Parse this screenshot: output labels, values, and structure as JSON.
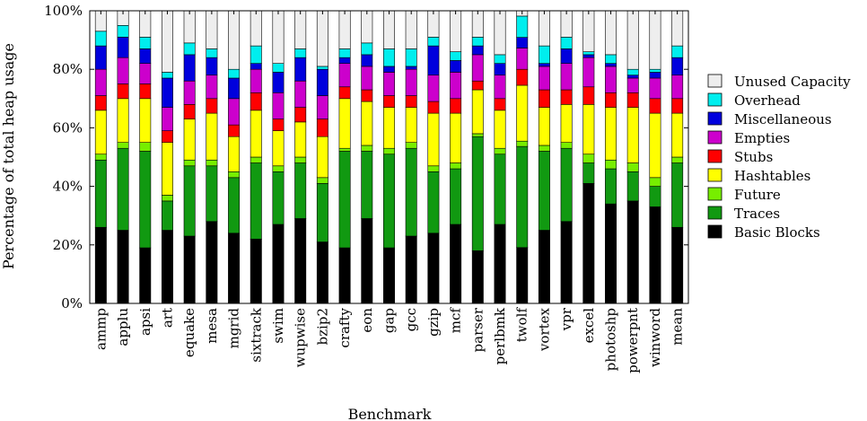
{
  "chart_data": {
    "type": "bar",
    "stacked": true,
    "normalized": true,
    "xlabel": "Benchmark",
    "ylabel": "Percentage of total heap usage",
    "ylim": [
      0,
      100
    ],
    "yticks": [
      "0%",
      "20%",
      "40%",
      "60%",
      "80%",
      "100%"
    ],
    "legend_position": "right",
    "grid": false,
    "categories": [
      "ammp",
      "applu",
      "apsi",
      "art",
      "equake",
      "mesa",
      "mgrid",
      "sixtrack",
      "swim",
      "wupwise",
      "bzip2",
      "crafty",
      "eon",
      "gap",
      "gcc",
      "gzip",
      "mcf",
      "parser",
      "perlbmk",
      "twolf",
      "vortex",
      "vpr",
      "excel",
      "photoshp",
      "powerpnt",
      "winword",
      "mean"
    ],
    "series": [
      {
        "name": "Basic Blocks",
        "color": "#000000",
        "values": [
          26,
          25,
          19,
          25,
          23,
          28,
          24,
          22,
          27,
          29,
          21,
          19,
          29,
          19,
          23,
          24,
          27,
          18,
          27,
          21,
          25,
          28,
          41,
          34,
          35,
          33,
          26
        ]
      },
      {
        "name": "Traces",
        "color": "#119911",
        "values": [
          23,
          28,
          33,
          10,
          24,
          19,
          19,
          26,
          18,
          19,
          20,
          33,
          23,
          32,
          30,
          21,
          19,
          39,
          24,
          38,
          27,
          25,
          7,
          12,
          10,
          7,
          22
        ]
      },
      {
        "name": "Future",
        "color": "#77ee00",
        "values": [
          2,
          2,
          3,
          2,
          2,
          2,
          2,
          2,
          2,
          2,
          2,
          1,
          2,
          2,
          2,
          2,
          2,
          1,
          2,
          2,
          2,
          2,
          3,
          3,
          3,
          3,
          2
        ]
      },
      {
        "name": "Hashtables",
        "color": "#ffff00",
        "values": [
          15,
          15,
          15,
          18,
          14,
          16,
          12,
          16,
          12,
          12,
          14,
          17,
          15,
          14,
          12,
          18,
          17,
          15,
          13,
          21,
          13,
          13,
          17,
          18,
          19,
          22,
          15
        ]
      },
      {
        "name": "Stubs",
        "color": "#ff0000",
        "values": [
          5,
          5,
          5,
          4,
          5,
          5,
          4,
          6,
          4,
          5,
          6,
          4,
          4,
          4,
          4,
          4,
          5,
          3,
          4,
          6,
          6,
          5,
          6,
          5,
          5,
          5,
          5
        ]
      },
      {
        "name": "Empties",
        "color": "#cc00cc",
        "values": [
          9,
          9,
          7,
          8,
          8,
          8,
          9,
          8,
          9,
          9,
          8,
          8,
          8,
          8,
          9,
          9,
          9,
          9,
          8,
          8,
          8,
          9,
          10,
          9,
          5,
          7,
          8
        ]
      },
      {
        "name": "Miscellaneous",
        "color": "#0000dd",
        "values": [
          8,
          7,
          5,
          10,
          9,
          6,
          7,
          2,
          7,
          8,
          9,
          2,
          4,
          2,
          1,
          10,
          4,
          3,
          4,
          4,
          1,
          5,
          1,
          1,
          1,
          2,
          6
        ]
      },
      {
        "name": "Overhead",
        "color": "#00eeee",
        "values": [
          5,
          4,
          4,
          2,
          4,
          3,
          3,
          6,
          3,
          3,
          1,
          3,
          4,
          6,
          6,
          3,
          3,
          3,
          3,
          8,
          6,
          4,
          1,
          3,
          2,
          1,
          4
        ]
      },
      {
        "name": "Unused Capacity",
        "color": "#eeeeee",
        "values": [
          7,
          5,
          9,
          21,
          11,
          13,
          20,
          12,
          18,
          13,
          19,
          13,
          11,
          13,
          13,
          9,
          14,
          9,
          15,
          2,
          12,
          9,
          14,
          15,
          20,
          20,
          12
        ]
      }
    ]
  }
}
